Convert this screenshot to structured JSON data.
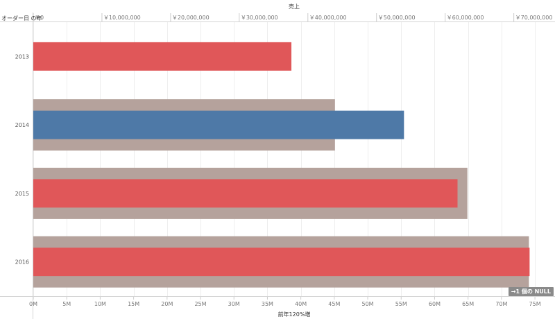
{
  "colors": {
    "background": "#ffffff",
    "reference_band": "#b5a29c",
    "below_target": "#e05759",
    "above_target": "#4e79a7",
    "grid": "#eeeeee",
    "axis_text": "#777777"
  },
  "null_indicator": "→1 個の NULL",
  "chart_data": {
    "type": "bar",
    "subtype": "bullet",
    "row_header": "オーダー日 の年",
    "top_axis": {
      "title": "売上",
      "ticks": [
        "￥0",
        "￥10,000,000",
        "￥20,000,000",
        "￥30,000,000",
        "￥40,000,000",
        "￥50,000,000",
        "￥60,000,000",
        "￥70,000,000"
      ],
      "values": [
        0,
        10000000,
        20000000,
        30000000,
        40000000,
        50000000,
        60000000,
        70000000
      ],
      "range": [
        0,
        76000000
      ]
    },
    "bottom_axis": {
      "title": "前年120%増",
      "ticks": [
        "0M",
        "5M",
        "10M",
        "15M",
        "20M",
        "25M",
        "30M",
        "35M",
        "40M",
        "45M",
        "50M",
        "55M",
        "60M",
        "65M",
        "70M",
        "75M"
      ],
      "values": [
        0,
        5000000,
        10000000,
        15000000,
        20000000,
        25000000,
        30000000,
        35000000,
        40000000,
        45000000,
        50000000,
        55000000,
        60000000,
        65000000,
        70000000,
        75000000
      ],
      "range": [
        0,
        78000000
      ]
    },
    "categories": [
      "2013",
      "2014",
      "2015",
      "2016"
    ],
    "series": [
      {
        "name": "売上",
        "values": [
          37600000,
          54000000,
          61800000,
          72300000
        ]
      },
      {
        "name": "前年120%増",
        "values": [
          null,
          45100000,
          64900000,
          74100000
        ]
      }
    ],
    "bar_status": [
      "below",
      "above",
      "below",
      "below"
    ]
  }
}
